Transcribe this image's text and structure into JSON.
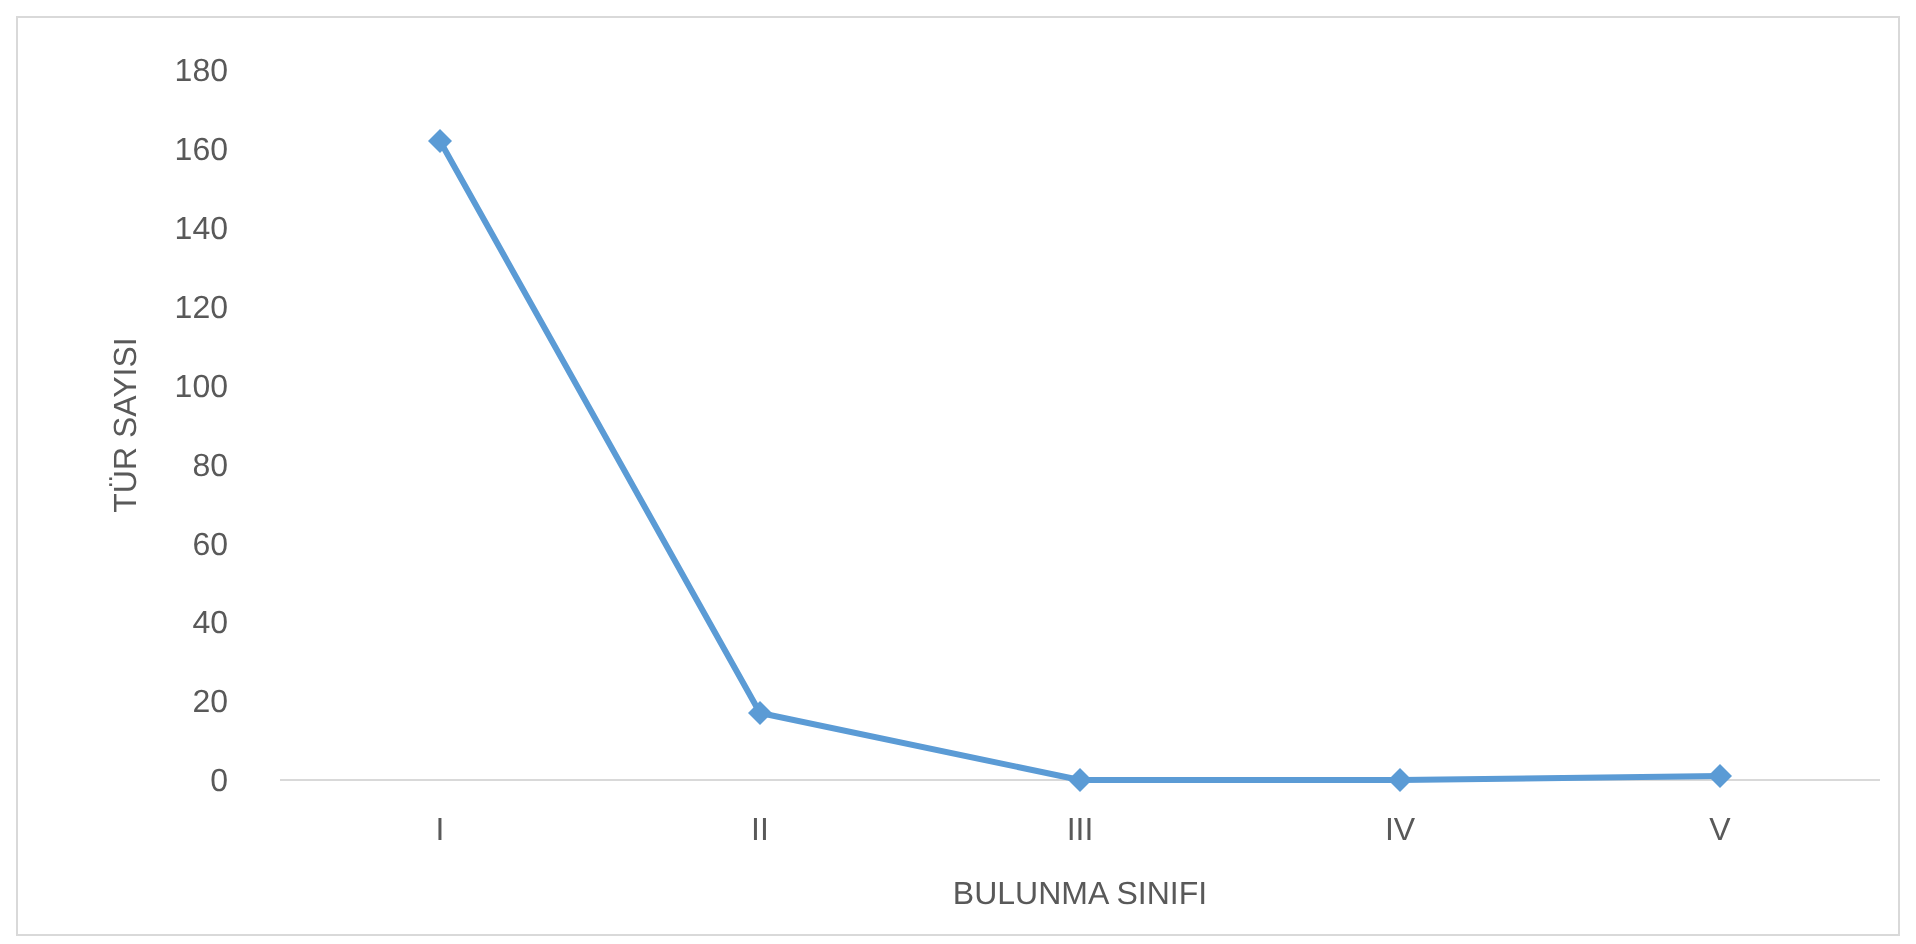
{
  "chart_data": {
    "type": "line",
    "xlabel": "BULUNMA SINIFI",
    "ylabel": "TÜR SAYISI",
    "categories": [
      "I",
      "II",
      "III",
      "IV",
      "V"
    ],
    "series": [
      {
        "color": "#5b9bd5",
        "values": [
          162,
          17,
          0,
          0,
          1
        ]
      }
    ],
    "ylim": [
      0,
      180
    ],
    "yticks": [
      0,
      20,
      40,
      60,
      80,
      100,
      120,
      140,
      160,
      180
    ],
    "grid": false,
    "marker": "diamond",
    "line_style": "solid"
  }
}
